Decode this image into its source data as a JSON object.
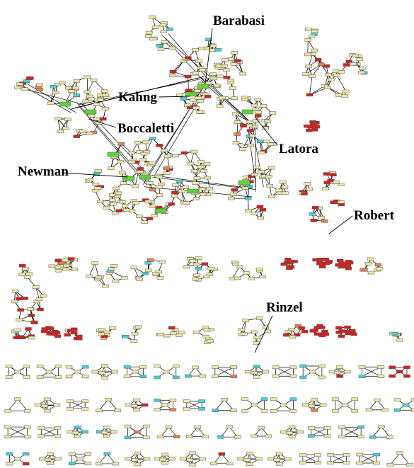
{
  "colors": {
    "node_default": "#ece8a6",
    "node_hub": "#5fd33a",
    "node_red": "#d42020",
    "node_orange": "#e8804e",
    "node_cyan": "#47d0d6",
    "edge": "#000000"
  },
  "labels": [
    {
      "id": "barabasi",
      "text": "Barabasi"
    },
    {
      "id": "kahng",
      "text": "Kahng"
    },
    {
      "id": "boccaletti",
      "text": "Boccaletti"
    },
    {
      "id": "latora",
      "text": "Latora"
    },
    {
      "id": "newman",
      "text": "Newman"
    },
    {
      "id": "robert",
      "text": "Robert"
    },
    {
      "id": "rinzel",
      "text": "Rinzel"
    }
  ]
}
